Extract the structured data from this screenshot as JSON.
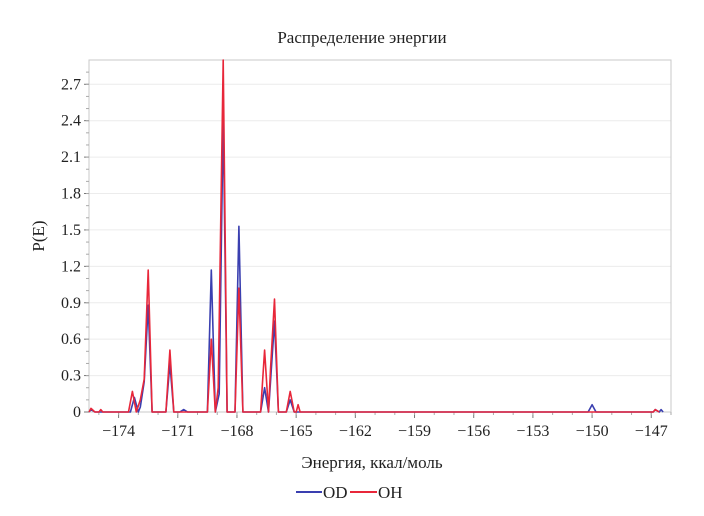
{
  "chart_data": {
    "type": "line",
    "title": "Распределение энергии",
    "xlabel": "Энергия, ккал/моль",
    "ylabel": "P(E)",
    "xlim": [
      -175.5,
      -146
    ],
    "ylim": [
      0,
      2.9
    ],
    "x_ticks": [
      -174,
      -171,
      -168,
      -165,
      -162,
      -159,
      -156,
      -153,
      -150,
      -147
    ],
    "x_tick_labels": [
      "−174",
      "−171",
      "−168",
      "−165",
      "−162",
      "−159",
      "−156",
      "−153",
      "−150",
      "−147"
    ],
    "y_ticks": [
      0,
      0.3,
      0.6,
      0.9,
      1.2,
      1.5,
      1.8,
      2.1,
      2.4,
      2.7
    ],
    "y_tick_labels": [
      "0",
      "0.3",
      "0.6",
      "0.9",
      "1.2",
      "1.5",
      "1.8",
      "2.1",
      "2.4",
      "2.7"
    ],
    "grid": true,
    "legend_position": "bottom-center",
    "series": [
      {
        "name": "OD",
        "color": "#3a3fb0",
        "points": [
          [
            -175.5,
            0
          ],
          [
            -175.4,
            0.02
          ],
          [
            -175.2,
            0
          ],
          [
            -173.4,
            0
          ],
          [
            -173.2,
            0.12
          ],
          [
            -173.0,
            0
          ],
          [
            -172.9,
            0.04
          ],
          [
            -172.7,
            0.25
          ],
          [
            -172.5,
            0.88
          ],
          [
            -172.3,
            0
          ],
          [
            -171.6,
            0
          ],
          [
            -171.4,
            0.4
          ],
          [
            -171.2,
            0
          ],
          [
            -170.9,
            0
          ],
          [
            -170.7,
            0.02
          ],
          [
            -170.5,
            0
          ],
          [
            -169.5,
            0
          ],
          [
            -169.3,
            1.17
          ],
          [
            -169.1,
            0
          ],
          [
            -168.9,
            0.15
          ],
          [
            -168.7,
            2.45
          ],
          [
            -168.5,
            0
          ],
          [
            -168.1,
            0
          ],
          [
            -167.9,
            1.53
          ],
          [
            -167.7,
            0
          ],
          [
            -166.8,
            0
          ],
          [
            -166.6,
            0.2
          ],
          [
            -166.4,
            0
          ],
          [
            -166.3,
            0.25
          ],
          [
            -166.1,
            0.75
          ],
          [
            -165.9,
            0
          ],
          [
            -165.5,
            0
          ],
          [
            -165.3,
            0.1
          ],
          [
            -165.1,
            0
          ],
          [
            -150.2,
            0
          ],
          [
            -150.0,
            0.06
          ],
          [
            -149.8,
            0
          ],
          [
            -146.9,
            0
          ],
          [
            -146.8,
            0.02
          ],
          [
            -146.6,
            0
          ],
          [
            -146.5,
            0.02
          ],
          [
            -146.4,
            0
          ]
        ]
      },
      {
        "name": "OH",
        "color": "#e8273a",
        "points": [
          [
            -175.5,
            0
          ],
          [
            -175.4,
            0.03
          ],
          [
            -175.2,
            0
          ],
          [
            -175.0,
            0
          ],
          [
            -174.9,
            0.02
          ],
          [
            -174.8,
            0
          ],
          [
            -173.5,
            0
          ],
          [
            -173.3,
            0.17
          ],
          [
            -173.1,
            0
          ],
          [
            -172.9,
            0.1
          ],
          [
            -172.7,
            0.27
          ],
          [
            -172.5,
            1.17
          ],
          [
            -172.3,
            0
          ],
          [
            -171.6,
            0
          ],
          [
            -171.4,
            0.51
          ],
          [
            -171.2,
            0
          ],
          [
            -169.5,
            0
          ],
          [
            -169.3,
            0.6
          ],
          [
            -169.1,
            0
          ],
          [
            -168.95,
            0.2
          ],
          [
            -168.7,
            2.9
          ],
          [
            -168.5,
            0
          ],
          [
            -168.1,
            0
          ],
          [
            -167.9,
            1.02
          ],
          [
            -167.7,
            0
          ],
          [
            -166.8,
            0
          ],
          [
            -166.6,
            0.51
          ],
          [
            -166.4,
            0
          ],
          [
            -166.3,
            0.35
          ],
          [
            -166.1,
            0.93
          ],
          [
            -165.9,
            0
          ],
          [
            -165.5,
            0
          ],
          [
            -165.3,
            0.17
          ],
          [
            -165.1,
            0
          ],
          [
            -165.0,
            0
          ],
          [
            -164.9,
            0.06
          ],
          [
            -164.8,
            0
          ],
          [
            -146.9,
            0
          ],
          [
            -146.8,
            0.02
          ],
          [
            -146.6,
            0
          ]
        ]
      }
    ]
  }
}
